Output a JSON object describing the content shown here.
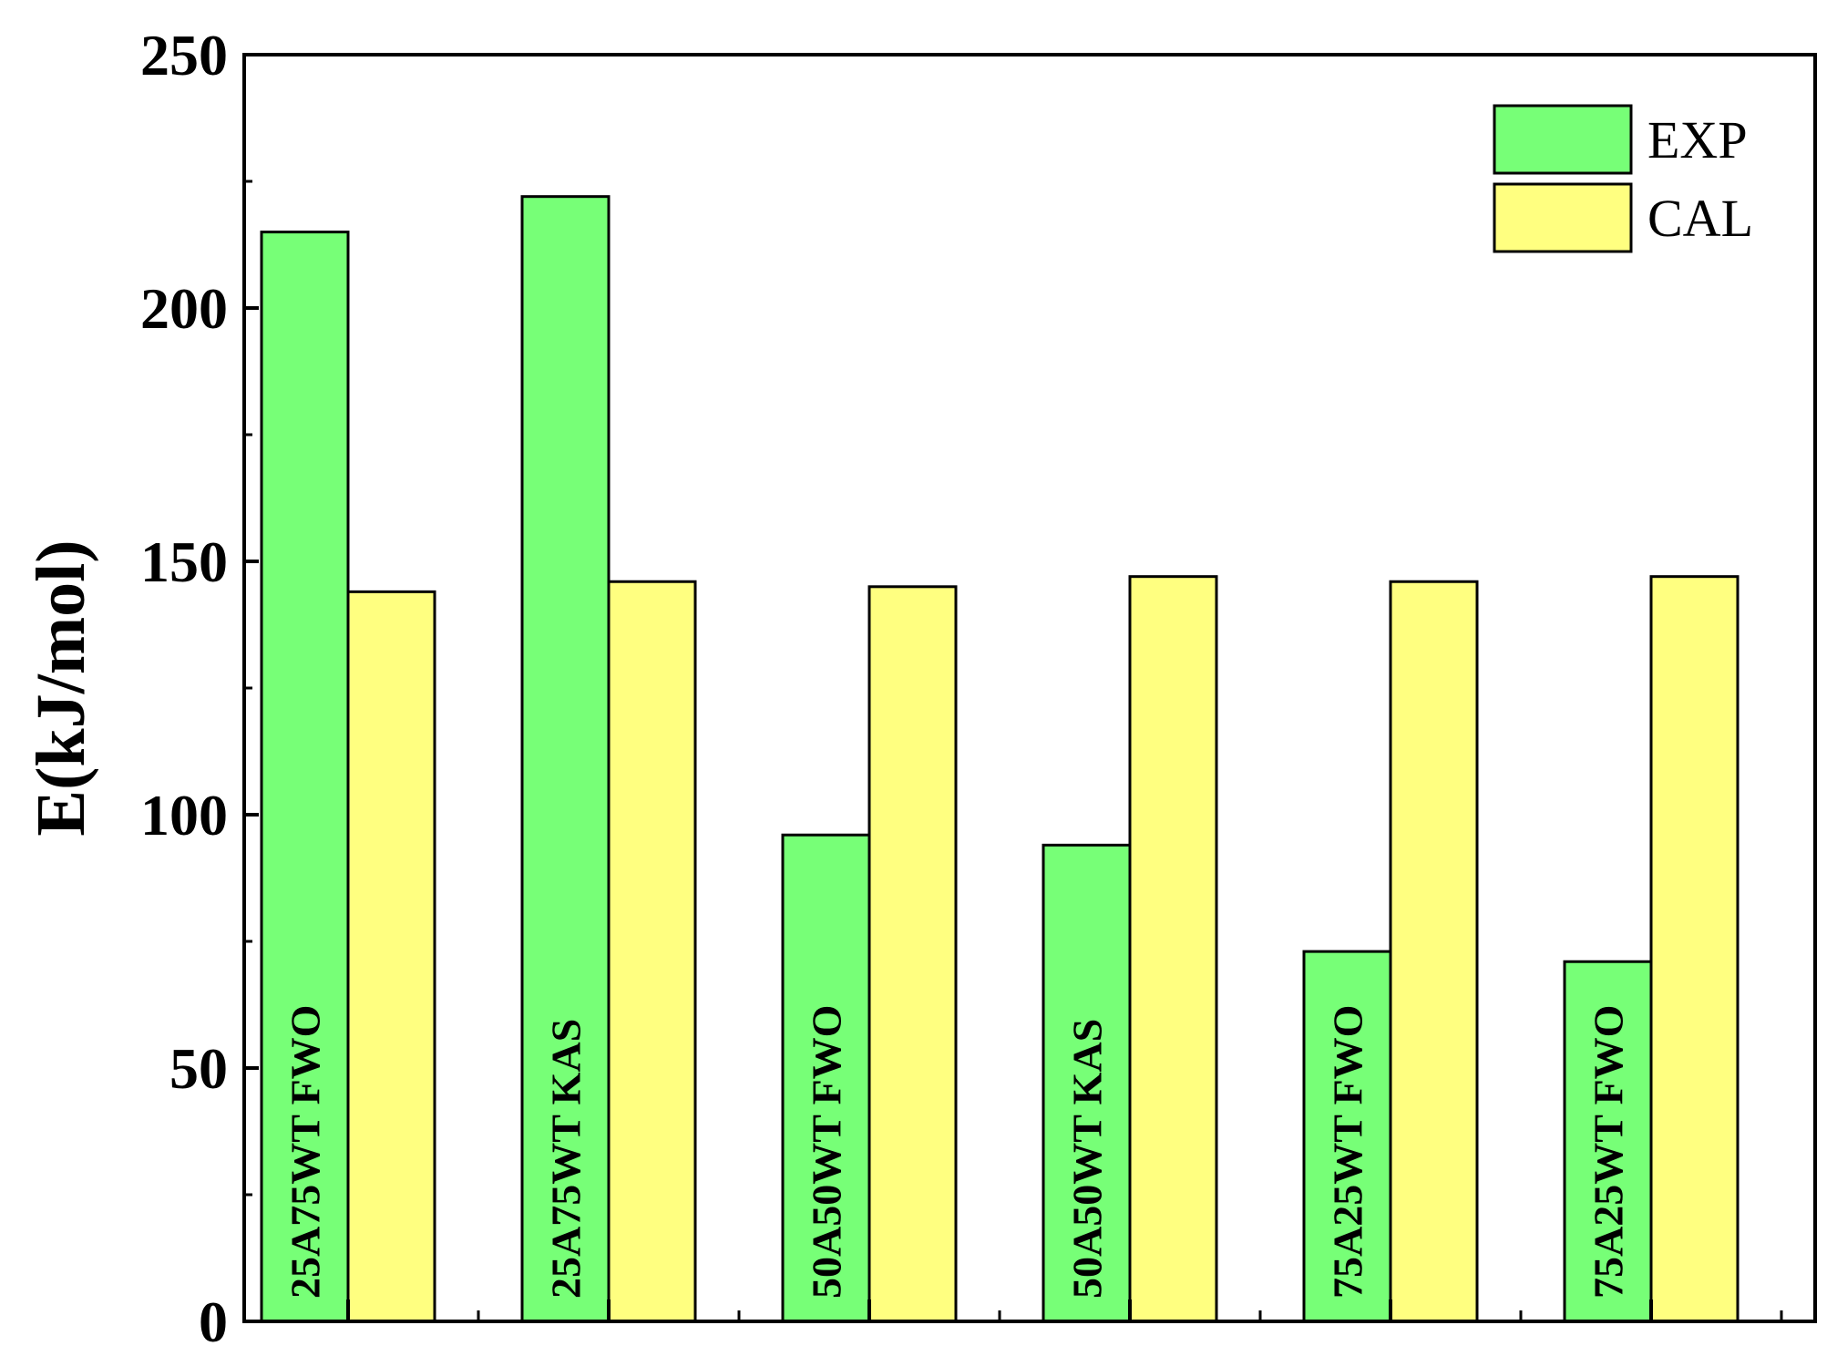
{
  "chart_data": {
    "type": "bar",
    "title": "",
    "xlabel": "",
    "ylabel": "E(kJ/mol)",
    "ylim": [
      0,
      250
    ],
    "yticks": [
      "0",
      "50",
      "100",
      "150",
      "200",
      "250"
    ],
    "grid": false,
    "legend_position": "top-right",
    "categories": [
      "25A75WT FWO",
      "25A75WT KAS",
      "50A50WT FWO",
      "50A50WT KAS",
      "75A25WT FWO",
      "75A25WT FWO"
    ],
    "series": [
      {
        "name": "EXP",
        "color": "#77ff77",
        "values": [
          215,
          222,
          96,
          94,
          73,
          71
        ]
      },
      {
        "name": "CAL",
        "color": "#ffff80",
        "values": [
          144,
          146,
          145,
          147,
          146,
          147
        ]
      }
    ]
  }
}
